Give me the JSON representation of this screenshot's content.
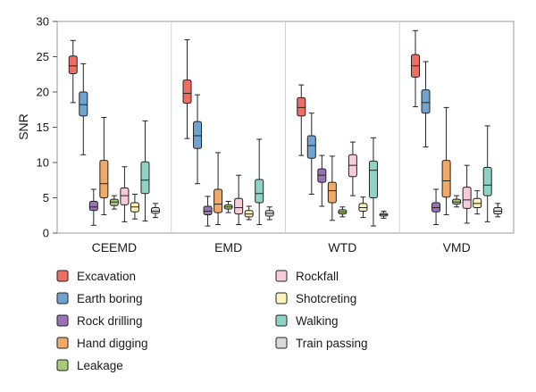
{
  "chart_data": {
    "type": "box",
    "ylabel": "SNR",
    "ylim": [
      0,
      30
    ],
    "yticks": [
      0,
      5,
      10,
      15,
      20,
      25,
      30
    ],
    "grid": false,
    "group_dividers": true,
    "legend_position": "bottom",
    "categories": [
      "CEEMD",
      "EMD",
      "WTD",
      "VMD"
    ],
    "series": [
      {
        "name": "Excavation",
        "color": "#ee6e64",
        "boxes": [
          {
            "min": 18.5,
            "q1": 22.6,
            "median": 23.7,
            "q3": 25.1,
            "max": 27.3
          },
          {
            "min": 13.4,
            "q1": 18.4,
            "median": 19.8,
            "q3": 21.7,
            "max": 27.4
          },
          {
            "min": 11.0,
            "q1": 16.6,
            "median": 17.8,
            "q3": 19.2,
            "max": 21.0
          },
          {
            "min": 17.9,
            "q1": 22.1,
            "median": 23.7,
            "q3": 25.3,
            "max": 28.7
          }
        ]
      },
      {
        "name": "Earth boring",
        "color": "#6fa3d2",
        "boxes": [
          {
            "min": 11.1,
            "q1": 16.6,
            "median": 18.2,
            "q3": 20.0,
            "max": 24.0
          },
          {
            "min": 7.0,
            "q1": 12.0,
            "median": 13.8,
            "q3": 15.8,
            "max": 19.6
          },
          {
            "min": 5.5,
            "q1": 10.6,
            "median": 12.4,
            "q3": 13.8,
            "max": 17.0
          },
          {
            "min": 12.2,
            "q1": 17.0,
            "median": 18.5,
            "q3": 20.3,
            "max": 24.3
          }
        ]
      },
      {
        "name": "Rock drilling",
        "color": "#9a73b4",
        "boxes": [
          {
            "min": 1.1,
            "q1": 3.2,
            "median": 3.7,
            "q3": 4.5,
            "max": 6.2
          },
          {
            "min": 1.0,
            "q1": 2.6,
            "median": 3.1,
            "q3": 3.8,
            "max": 5.2
          },
          {
            "min": 3.8,
            "q1": 7.2,
            "median": 8.2,
            "q3": 9.1,
            "max": 11.0
          },
          {
            "min": 1.2,
            "q1": 3.0,
            "median": 3.6,
            "q3": 4.3,
            "max": 6.2
          }
        ]
      },
      {
        "name": "Hand digging",
        "color": "#efaa67",
        "boxes": [
          {
            "min": 2.6,
            "q1": 5.0,
            "median": 7.0,
            "q3": 10.3,
            "max": 16.4
          },
          {
            "min": 1.2,
            "q1": 2.9,
            "median": 4.1,
            "q3": 6.2,
            "max": 11.4
          },
          {
            "min": 1.8,
            "q1": 4.3,
            "median": 6.0,
            "q3": 7.2,
            "max": 10.9
          },
          {
            "min": 2.6,
            "q1": 5.1,
            "median": 7.4,
            "q3": 10.3,
            "max": 17.8
          }
        ]
      },
      {
        "name": "Leakage",
        "color": "#a7c97a",
        "boxes": [
          {
            "min": 3.4,
            "q1": 3.9,
            "median": 4.4,
            "q3": 4.8,
            "max": 5.3
          },
          {
            "min": 2.9,
            "q1": 3.4,
            "median": 3.7,
            "q3": 4.0,
            "max": 4.5
          },
          {
            "min": 2.3,
            "q1": 2.7,
            "median": 3.0,
            "q3": 3.3,
            "max": 3.7
          },
          {
            "min": 3.7,
            "q1": 4.1,
            "median": 4.4,
            "q3": 4.8,
            "max": 5.3
          }
        ]
      },
      {
        "name": "Rockfall",
        "color": "#f8cbdb",
        "boxes": [
          {
            "min": 1.6,
            "q1": 4.0,
            "median": 5.3,
            "q3": 6.4,
            "max": 9.4
          },
          {
            "min": 1.2,
            "q1": 2.7,
            "median": 3.6,
            "q3": 4.9,
            "max": 8.2
          },
          {
            "min": 5.3,
            "q1": 8.0,
            "median": 9.6,
            "q3": 11.1,
            "max": 12.9
          },
          {
            "min": 1.4,
            "q1": 3.5,
            "median": 4.7,
            "q3": 6.5,
            "max": 9.6
          }
        ]
      },
      {
        "name": "Shotcreting",
        "color": "#fbf3b9",
        "boxes": [
          {
            "min": 2.0,
            "q1": 3.0,
            "median": 3.7,
            "q3": 4.3,
            "max": 5.5
          },
          {
            "min": 1.9,
            "q1": 2.3,
            "median": 2.7,
            "q3": 3.2,
            "max": 3.8
          },
          {
            "min": 2.2,
            "q1": 3.1,
            "median": 3.6,
            "q3": 4.2,
            "max": 5.1
          },
          {
            "min": 2.7,
            "q1": 3.6,
            "median": 4.2,
            "q3": 4.9,
            "max": 6.0
          }
        ]
      },
      {
        "name": "Walking",
        "color": "#8fd3c4",
        "boxes": [
          {
            "min": 1.7,
            "q1": 5.6,
            "median": 7.5,
            "q3": 10.1,
            "max": 15.9
          },
          {
            "min": 1.2,
            "q1": 4.3,
            "median": 5.6,
            "q3": 7.6,
            "max": 13.3
          },
          {
            "min": 1.0,
            "q1": 5.0,
            "median": 8.9,
            "q3": 10.2,
            "max": 13.5
          },
          {
            "min": 1.6,
            "q1": 5.3,
            "median": 6.8,
            "q3": 9.3,
            "max": 15.2
          }
        ]
      },
      {
        "name": "Train passing",
        "color": "#d9d9d9",
        "boxes": [
          {
            "min": 2.2,
            "q1": 2.8,
            "median": 3.1,
            "q3": 3.6,
            "max": 4.2
          },
          {
            "min": 1.9,
            "q1": 2.4,
            "median": 2.8,
            "q3": 3.2,
            "max": 3.7
          },
          {
            "min": 2.1,
            "q1": 2.4,
            "median": 2.6,
            "q3": 2.8,
            "max": 3.1
          },
          {
            "min": 2.3,
            "q1": 2.7,
            "median": 3.1,
            "q3": 3.6,
            "max": 4.2
          }
        ]
      }
    ]
  }
}
